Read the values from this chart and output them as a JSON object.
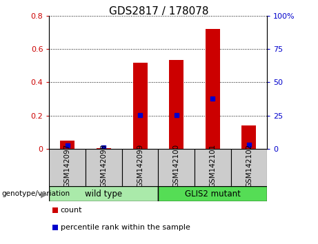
{
  "title": "GDS2817 / 178078",
  "samples": [
    "GSM142097",
    "GSM142098",
    "GSM142099",
    "GSM142100",
    "GSM142101",
    "GSM142102"
  ],
  "counts": [
    0.05,
    0.003,
    0.52,
    0.535,
    0.72,
    0.14
  ],
  "percentile_ranks_pct": [
    2.5,
    1.0,
    25.5,
    25.5,
    38.0,
    3.0
  ],
  "left_ylim": [
    0,
    0.8
  ],
  "right_ylim": [
    0,
    100
  ],
  "left_yticks": [
    0,
    0.2,
    0.4,
    0.6,
    0.8
  ],
  "right_yticks": [
    0,
    25,
    50,
    75,
    100
  ],
  "left_yticklabels": [
    "0",
    "0.2",
    "0.4",
    "0.6",
    "0.8"
  ],
  "right_yticklabels": [
    "0",
    "25",
    "50",
    "75",
    "100%"
  ],
  "bar_color": "#cc0000",
  "dot_color": "#0000cc",
  "bar_width": 0.4,
  "groups": [
    {
      "label": "wild type",
      "span": [
        0,
        3
      ],
      "color": "#aaeaaa"
    },
    {
      "label": "GLIS2 mutant",
      "span": [
        3,
        6
      ],
      "color": "#55dd55"
    }
  ],
  "group_label_prefix": "genotype/variation",
  "legend_count_label": "count",
  "legend_percentile_label": "percentile rank within the sample",
  "grid_color": "#000000",
  "left_tick_color": "#cc0000",
  "right_tick_color": "#0000cc",
  "title_fontsize": 11,
  "tick_label_fontsize": 8,
  "sample_label_fontsize": 7.5,
  "sample_box_color": "#cccccc",
  "spine_color": "#000000"
}
